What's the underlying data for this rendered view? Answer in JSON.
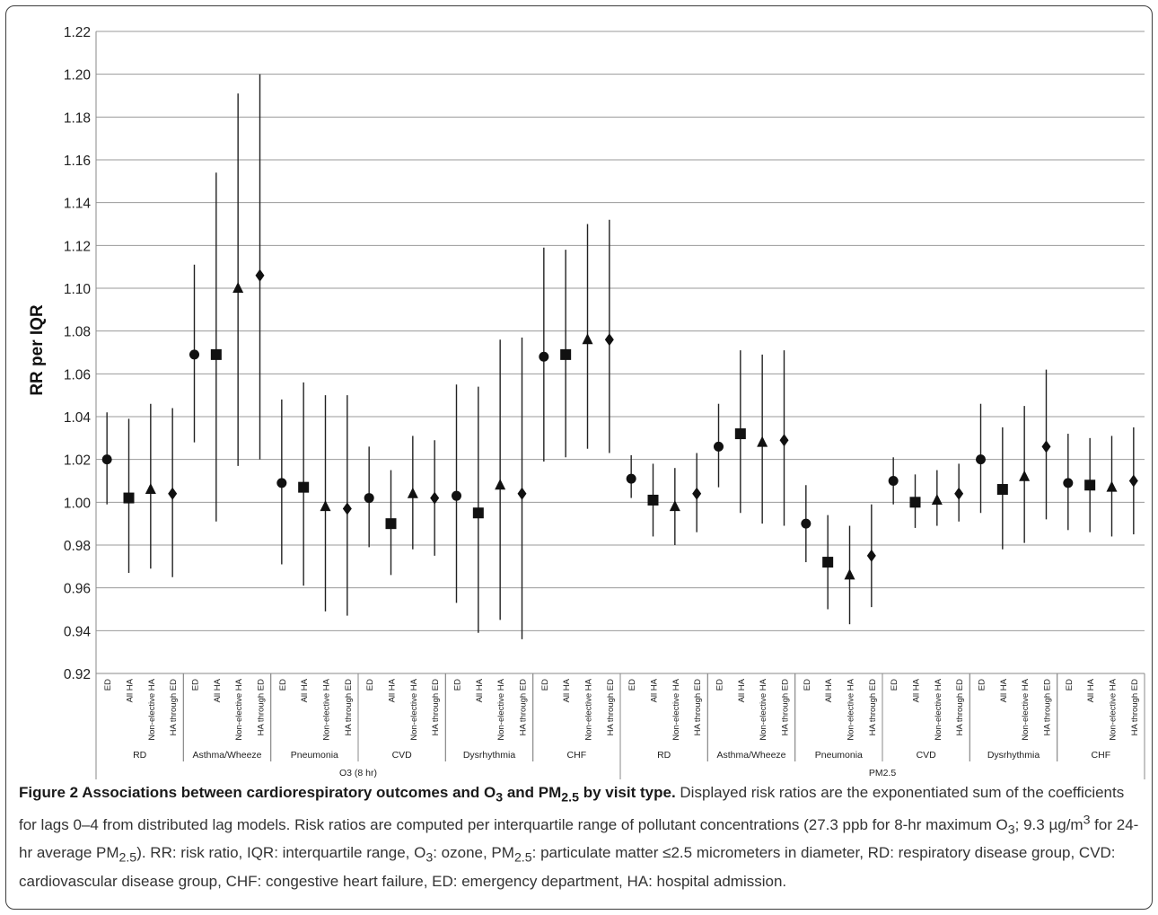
{
  "chart_data": {
    "type": "scatter",
    "subtype": "point-with-interval",
    "ylabel": "RR per IQR",
    "ylim": [
      0.92,
      1.22
    ],
    "ytick_step": 0.02,
    "grid": true,
    "visit_types": [
      "ED",
      "All HA",
      "Non-elective HA",
      "HA through ED"
    ],
    "visit_markers": [
      "circle",
      "square",
      "triangle",
      "diamond"
    ],
    "groups": [
      {
        "pollutant": "O3 (8 hr)",
        "outcomes": [
          {
            "name": "RD",
            "points": [
              {
                "est": 1.02,
                "lo": 0.999,
                "hi": 1.042
              },
              {
                "est": 1.002,
                "lo": 0.967,
                "hi": 1.039
              },
              {
                "est": 1.006,
                "lo": 0.969,
                "hi": 1.046
              },
              {
                "est": 1.004,
                "lo": 0.965,
                "hi": 1.044
              }
            ]
          },
          {
            "name": "Asthma/Wheeze",
            "points": [
              {
                "est": 1.069,
                "lo": 1.028,
                "hi": 1.111
              },
              {
                "est": 1.069,
                "lo": 0.991,
                "hi": 1.154
              },
              {
                "est": 1.1,
                "lo": 1.017,
                "hi": 1.191
              },
              {
                "est": 1.106,
                "lo": 1.02,
                "hi": 1.2
              }
            ]
          },
          {
            "name": "Pneumonia",
            "points": [
              {
                "est": 1.009,
                "lo": 0.971,
                "hi": 1.048
              },
              {
                "est": 1.007,
                "lo": 0.961,
                "hi": 1.056
              },
              {
                "est": 0.998,
                "lo": 0.949,
                "hi": 1.05
              },
              {
                "est": 0.997,
                "lo": 0.947,
                "hi": 1.05
              }
            ]
          },
          {
            "name": "CVD",
            "points": [
              {
                "est": 1.002,
                "lo": 0.979,
                "hi": 1.026
              },
              {
                "est": 0.99,
                "lo": 0.966,
                "hi": 1.015
              },
              {
                "est": 1.004,
                "lo": 0.978,
                "hi": 1.031
              },
              {
                "est": 1.002,
                "lo": 0.975,
                "hi": 1.029
              }
            ]
          },
          {
            "name": "Dysrhythmia",
            "points": [
              {
                "est": 1.003,
                "lo": 0.953,
                "hi": 1.055
              },
              {
                "est": 0.995,
                "lo": 0.939,
                "hi": 1.054
              },
              {
                "est": 1.008,
                "lo": 0.945,
                "hi": 1.076
              },
              {
                "est": 1.004,
                "lo": 0.936,
                "hi": 1.077
              }
            ]
          },
          {
            "name": "CHF",
            "points": [
              {
                "est": 1.068,
                "lo": 1.019,
                "hi": 1.119
              },
              {
                "est": 1.069,
                "lo": 1.021,
                "hi": 1.118
              },
              {
                "est": 1.076,
                "lo": 1.025,
                "hi": 1.13
              },
              {
                "est": 1.076,
                "lo": 1.023,
                "hi": 1.132
              }
            ]
          }
        ]
      },
      {
        "pollutant": "PM2.5",
        "outcomes": [
          {
            "name": "RD",
            "points": [
              {
                "est": 1.011,
                "lo": 1.002,
                "hi": 1.022
              },
              {
                "est": 1.001,
                "lo": 0.984,
                "hi": 1.018
              },
              {
                "est": 0.998,
                "lo": 0.98,
                "hi": 1.016
              },
              {
                "est": 1.004,
                "lo": 0.986,
                "hi": 1.023
              }
            ]
          },
          {
            "name": "Asthma/Wheeze",
            "points": [
              {
                "est": 1.026,
                "lo": 1.007,
                "hi": 1.046
              },
              {
                "est": 1.032,
                "lo": 0.995,
                "hi": 1.071
              },
              {
                "est": 1.028,
                "lo": 0.99,
                "hi": 1.069
              },
              {
                "est": 1.029,
                "lo": 0.989,
                "hi": 1.071
              }
            ]
          },
          {
            "name": "Pneumonia",
            "points": [
              {
                "est": 0.99,
                "lo": 0.972,
                "hi": 1.008
              },
              {
                "est": 0.972,
                "lo": 0.95,
                "hi": 0.994
              },
              {
                "est": 0.966,
                "lo": 0.943,
                "hi": 0.989
              },
              {
                "est": 0.975,
                "lo": 0.951,
                "hi": 0.999
              }
            ]
          },
          {
            "name": "CVD",
            "points": [
              {
                "est": 1.01,
                "lo": 0.999,
                "hi": 1.021
              },
              {
                "est": 1.0,
                "lo": 0.988,
                "hi": 1.013
              },
              {
                "est": 1.001,
                "lo": 0.989,
                "hi": 1.015
              },
              {
                "est": 1.004,
                "lo": 0.991,
                "hi": 1.018
              }
            ]
          },
          {
            "name": "Dysrhythmia",
            "points": [
              {
                "est": 1.02,
                "lo": 0.995,
                "hi": 1.046
              },
              {
                "est": 1.006,
                "lo": 0.978,
                "hi": 1.035
              },
              {
                "est": 1.012,
                "lo": 0.981,
                "hi": 1.045
              },
              {
                "est": 1.026,
                "lo": 0.992,
                "hi": 1.062
              }
            ]
          },
          {
            "name": "CHF",
            "points": [
              {
                "est": 1.009,
                "lo": 0.987,
                "hi": 1.032
              },
              {
                "est": 1.008,
                "lo": 0.986,
                "hi": 1.03
              },
              {
                "est": 1.007,
                "lo": 0.984,
                "hi": 1.031
              },
              {
                "est": 1.01,
                "lo": 0.985,
                "hi": 1.035
              }
            ]
          }
        ]
      }
    ]
  },
  "caption": {
    "title_pre": "Figure 2 Associations between cardiorespiratory outcomes and O",
    "title_sub1": "3",
    "title_mid": " and PM",
    "title_sub2": "2.5",
    "title_post": " by visit type.",
    "t1": " Displayed risk ratios are the exponentiated sum of the coefficients for lags 0–4 from distributed lag models. Risk ratios are computed per interquartile range of pollutant concentrations (27.3 ppb for 8-hr maximum O",
    "s1": "3",
    "t2": "; 9.3 µg/m",
    "sup1": "3",
    "t3": " for 24-hr average PM",
    "s2": "2.5",
    "t4": "). RR: risk ratio, IQR: interquartile range, O",
    "s3": "3",
    "t5": ": ozone, PM",
    "s4": "2.5",
    "t6": ": particulate matter ≤2.5 micrometers in diameter, RD: respiratory disease group, CVD: cardiovascular disease group, CHF: congestive heart failure, ED: emergency department, HA: hospital admission."
  }
}
